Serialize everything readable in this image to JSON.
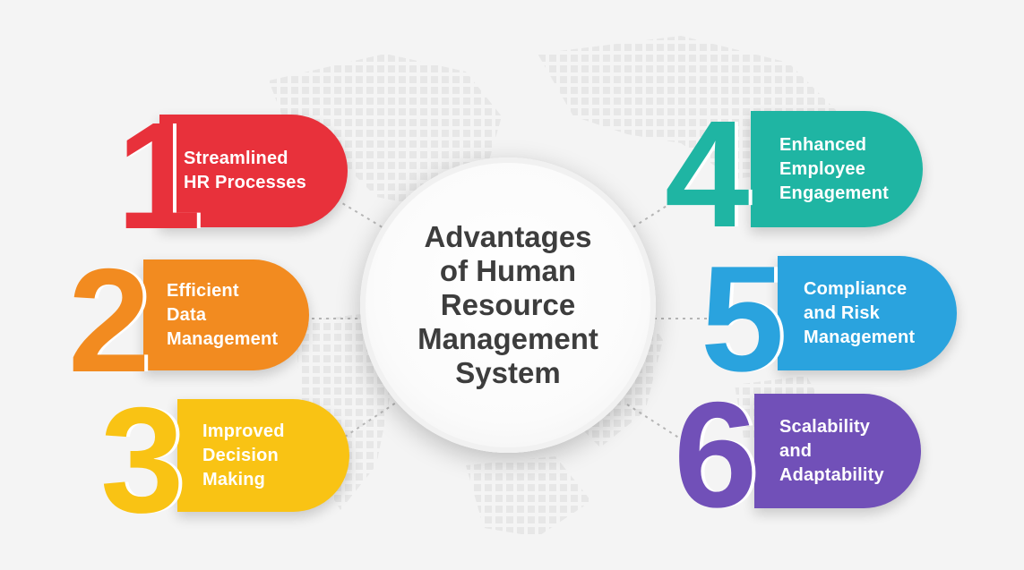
{
  "title": "Advantages\nof Human\nResource\nManagement\nSystem",
  "items": [
    {
      "number": "1",
      "text": "Streamlined\nHR Processes",
      "color": "#e8313b"
    },
    {
      "number": "2",
      "text": "Efficient\nData\nManagement",
      "color": "#f28b20"
    },
    {
      "number": "3",
      "text": "Improved\nDecision\nMaking",
      "color": "#f9c314"
    },
    {
      "number": "4",
      "text": "Enhanced\nEmployee\nEngagement",
      "color": "#1fb5a3"
    },
    {
      "number": "5",
      "text": "Compliance\nand Risk\nManagement",
      "color": "#2aa3de"
    },
    {
      "number": "6",
      "text": "Scalability\nand\nAdaptability",
      "color": "#7150b8"
    }
  ],
  "colors": {
    "title": "#3d3d3d",
    "background": "#f4f4f4",
    "connector": "#b5b5b5"
  }
}
